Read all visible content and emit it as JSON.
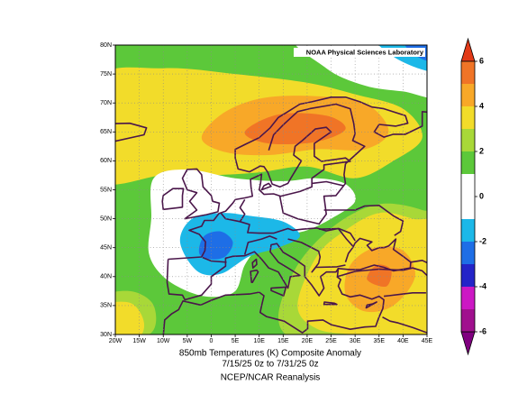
{
  "chart_data": {
    "type": "contour-map",
    "title": "850mb Temperatures (K)  Composite Anomaly",
    "subtitle": "7/15/25 0z  to 7/31/25 0z",
    "source": "NCEP/NCAR Reanalysis",
    "credit": "NOAA Physical Sciences Laboratory",
    "xlim": [
      -20,
      45
    ],
    "xticks": [
      {
        "value": -20,
        "label": "20W"
      },
      {
        "value": -15,
        "label": "15W"
      },
      {
        "value": -10,
        "label": "10W"
      },
      {
        "value": -5,
        "label": "5W"
      },
      0,
      {
        "value": 5,
        "label": "5E"
      },
      {
        "value": 10,
        "label": "10E"
      },
      {
        "value": 15,
        "label": "15E"
      },
      {
        "value": 20,
        "label": "20E"
      },
      {
        "value": 25,
        "label": "25E"
      },
      {
        "value": 30,
        "label": "30E"
      },
      {
        "value": 35,
        "label": "35E"
      },
      {
        "value": 40,
        "label": "40E"
      },
      {
        "value": 45,
        "label": "45E"
      }
    ],
    "ylim": [
      30,
      80
    ],
    "yticks": [
      {
        "value": 30,
        "label": "30N"
      },
      {
        "value": 35,
        "label": "35N"
      },
      {
        "value": 40,
        "label": "40N"
      },
      {
        "value": 45,
        "label": "45N"
      },
      {
        "value": 50,
        "label": "50N"
      },
      {
        "value": 55,
        "label": "55N"
      },
      {
        "value": 60,
        "label": "60N"
      },
      {
        "value": 65,
        "label": "65N"
      },
      {
        "value": 70,
        "label": "70N"
      },
      {
        "value": 75,
        "label": "75N"
      },
      {
        "value": 80,
        "label": "80N"
      }
    ],
    "grid": true,
    "colorbar": {
      "lim": [
        -7,
        7
      ],
      "ticks": [
        -6,
        -4,
        -2,
        0,
        2,
        4,
        6
      ],
      "levels": [
        -6,
        -5,
        -4,
        -3,
        -2,
        -1,
        1,
        2,
        3,
        4,
        5,
        6
      ],
      "colors": [
        "#a0108e",
        "#cc18c4",
        "#2424c8",
        "#1e6ee6",
        "#1cb8e8",
        "#ffffff",
        "#5cc83a",
        "#a8d838",
        "#f2dc2a",
        "#f8a828",
        "#f07426"
      ],
      "under_color": "#800080",
      "over_color": "#e23a18"
    }
  }
}
